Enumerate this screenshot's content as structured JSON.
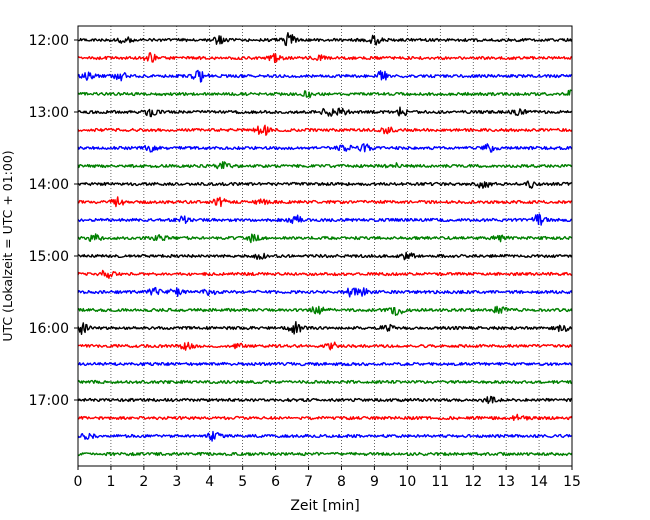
{
  "chart_data": {
    "type": "line",
    "title": "",
    "xlabel": "Zeit  [min]",
    "ylabel": "UTC (Lokalzeit = UTC + 01:00)",
    "xlim": [
      0,
      15
    ],
    "x_ticks": [
      "0",
      "1",
      "2",
      "3",
      "4",
      "5",
      "6",
      "7",
      "8",
      "9",
      "10",
      "11",
      "12",
      "13",
      "14",
      "15"
    ],
    "y_ticks": [
      "12:00",
      "13:00",
      "14:00",
      "15:00",
      "16:00",
      "17:00"
    ],
    "grid": "vertical dotted lines at each minute",
    "series_colors": [
      "#000000",
      "#ff0000",
      "#0000ff",
      "#008000"
    ],
    "traces": [
      {
        "time": "12:00",
        "color": "#000000",
        "events": [
          [
            1.4,
            0.5
          ],
          [
            4.3,
            0.6
          ],
          [
            6.4,
            1.0
          ],
          [
            9.0,
            0.6
          ]
        ]
      },
      {
        "time": "12:15",
        "color": "#ff0000",
        "events": [
          [
            2.2,
            0.7
          ],
          [
            6.0,
            0.5
          ],
          [
            7.3,
            0.4
          ]
        ]
      },
      {
        "time": "12:30",
        "color": "#0000ff",
        "events": [
          [
            0.3,
            0.5
          ],
          [
            1.3,
            0.6
          ],
          [
            3.7,
            0.8
          ],
          [
            9.2,
            0.8
          ]
        ]
      },
      {
        "time": "12:45",
        "color": "#008000",
        "events": [
          [
            7.0,
            0.4
          ],
          [
            15.0,
            0.5
          ]
        ]
      },
      {
        "time": "13:00",
        "color": "#000000",
        "events": [
          [
            2.2,
            0.5
          ],
          [
            7.6,
            0.7
          ],
          [
            8.0,
            0.5
          ],
          [
            9.8,
            0.6
          ],
          [
            13.4,
            0.4
          ]
        ]
      },
      {
        "time": "13:15",
        "color": "#ff0000",
        "events": [
          [
            5.6,
            0.9
          ],
          [
            9.4,
            0.6
          ]
        ]
      },
      {
        "time": "13:30",
        "color": "#0000ff",
        "events": [
          [
            2.2,
            0.4
          ],
          [
            8.1,
            0.6
          ],
          [
            8.7,
            0.5
          ],
          [
            12.5,
            0.6
          ]
        ]
      },
      {
        "time": "13:45",
        "color": "#008000",
        "events": [
          [
            4.4,
            0.5
          ],
          [
            9.6,
            0.4
          ]
        ]
      },
      {
        "time": "14:00",
        "color": "#000000",
        "events": [
          [
            12.3,
            0.6
          ],
          [
            13.8,
            0.5
          ]
        ]
      },
      {
        "time": "14:15",
        "color": "#ff0000",
        "events": [
          [
            1.2,
            0.6
          ],
          [
            4.3,
            0.7
          ],
          [
            5.6,
            0.5
          ]
        ]
      },
      {
        "time": "14:30",
        "color": "#0000ff",
        "events": [
          [
            3.2,
            0.5
          ],
          [
            6.6,
            0.8
          ],
          [
            14.0,
            0.8
          ]
        ]
      },
      {
        "time": "14:45",
        "color": "#008000",
        "events": [
          [
            0.5,
            0.5
          ],
          [
            2.5,
            0.5
          ],
          [
            5.3,
            0.6
          ],
          [
            12.8,
            0.4
          ]
        ]
      },
      {
        "time": "15:00",
        "color": "#000000",
        "events": [
          [
            5.5,
            0.4
          ],
          [
            10.0,
            0.5
          ]
        ]
      },
      {
        "time": "15:15",
        "color": "#ff0000",
        "events": [
          [
            0.9,
            0.7
          ]
        ]
      },
      {
        "time": "15:30",
        "color": "#0000ff",
        "events": [
          [
            2.3,
            0.6
          ],
          [
            3.0,
            0.7
          ],
          [
            4.0,
            0.5
          ],
          [
            8.3,
            0.6
          ],
          [
            8.7,
            0.5
          ]
        ]
      },
      {
        "time": "15:45",
        "color": "#008000",
        "events": [
          [
            7.3,
            0.7
          ],
          [
            9.7,
            0.7
          ],
          [
            12.8,
            0.5
          ]
        ]
      },
      {
        "time": "16:00",
        "color": "#000000",
        "events": [
          [
            0.1,
            0.8
          ],
          [
            6.6,
            0.8
          ],
          [
            9.4,
            0.4
          ],
          [
            14.7,
            0.5
          ]
        ]
      },
      {
        "time": "16:15",
        "color": "#ff0000",
        "events": [
          [
            3.3,
            0.7
          ],
          [
            4.8,
            0.4
          ],
          [
            7.7,
            0.5
          ]
        ]
      },
      {
        "time": "16:30",
        "color": "#0000ff",
        "events": []
      },
      {
        "time": "16:45",
        "color": "#008000",
        "events": []
      },
      {
        "time": "17:00",
        "color": "#000000",
        "events": [
          [
            12.5,
            0.4
          ]
        ]
      },
      {
        "time": "17:15",
        "color": "#ff0000",
        "events": [
          [
            13.4,
            0.4
          ]
        ]
      },
      {
        "time": "17:30",
        "color": "#0000ff",
        "events": [
          [
            0.3,
            0.4
          ],
          [
            4.1,
            0.6
          ]
        ]
      },
      {
        "time": "17:45",
        "color": "#008000",
        "events": []
      }
    ]
  }
}
